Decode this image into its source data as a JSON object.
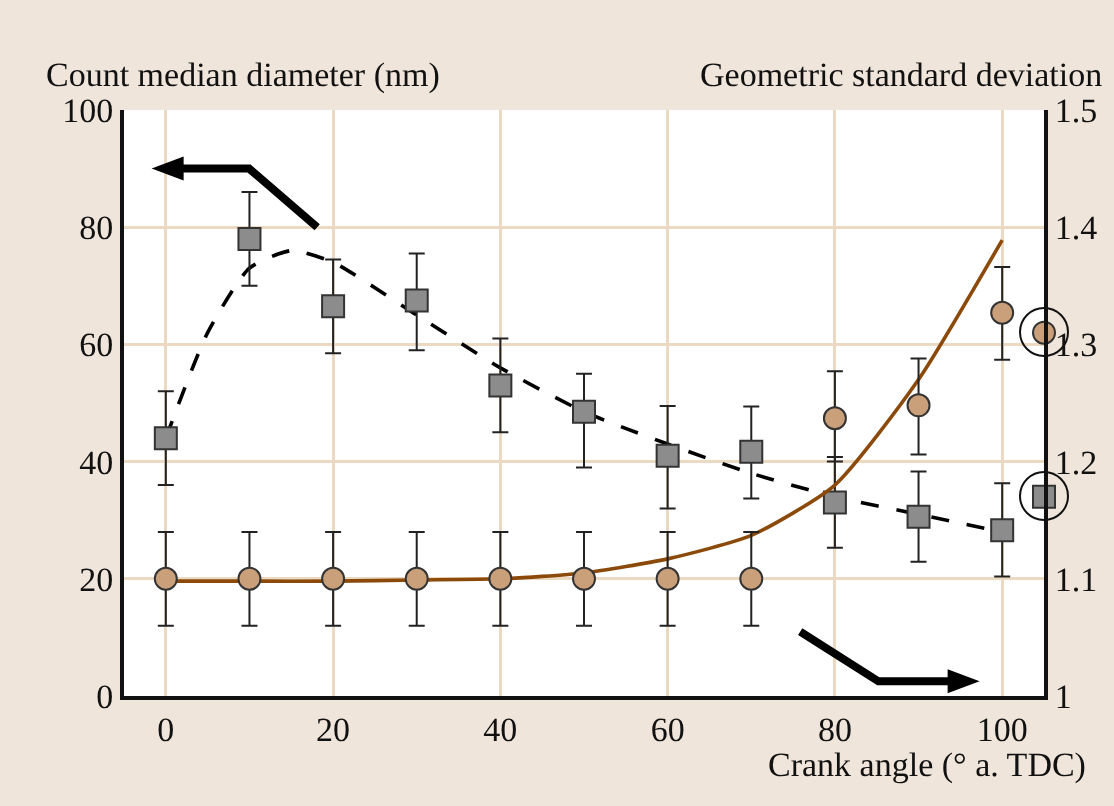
{
  "chart_data": {
    "type": "scatter",
    "xlabel": "Crank angle (° a. TDC)",
    "ylabel": "Count median diameter (nm)",
    "y2label": "Geometric standard deviation",
    "xlim": [
      -5,
      105
    ],
    "xticks": [
      0,
      20,
      40,
      60,
      80,
      100
    ],
    "ylim": [
      0,
      100
    ],
    "yticks": [
      0,
      20,
      40,
      60,
      80,
      100
    ],
    "y2lim": [
      1,
      1.5
    ],
    "y2ticks": [
      1,
      1.1,
      1.2,
      1.3,
      1.4,
      1.5
    ],
    "grid": true,
    "series": [
      {
        "type": "scatter",
        "color": "#8c8c8c",
        "marker": "square",
        "x": [
          0,
          10,
          20,
          30,
          40,
          50,
          60,
          70,
          80,
          90,
          100
        ],
        "values": [
          44,
          78,
          66.5,
          67.5,
          53,
          48.5,
          41,
          41.7,
          33,
          30.6,
          28.3
        ],
        "errors": [
          [
            36,
            52
          ],
          [
            70,
            86
          ],
          [
            58.5,
            74.5
          ],
          [
            59,
            75.5
          ],
          [
            45,
            61
          ],
          [
            39,
            55
          ],
          [
            32,
            49.5
          ],
          [
            33.7,
            49.4
          ],
          [
            25.3,
            40.8
          ],
          [
            22.9,
            38.3
          ],
          [
            20.4,
            36.3
          ]
        ]
      },
      {
        "type": "scatter",
        "axis": "y2",
        "color": "#c9a07a",
        "marker": "circle",
        "x": [
          0,
          10,
          20,
          30,
          40,
          50,
          60,
          70,
          80,
          90,
          100
        ],
        "values": [
          1.1,
          1.1,
          1.1,
          1.1,
          1.1,
          1.1,
          1.1,
          1.1,
          1.237,
          1.248,
          1.327
        ],
        "errors": [
          0.04,
          0.04,
          0.04,
          0.04,
          0.04,
          0.04,
          0.04,
          0.04,
          [
            1.2,
            1.277
          ],
          [
            1.206,
            1.288
          ],
          [
            1.287,
            1.366
          ]
        ]
      },
      {
        "axis": "y2",
        "color": "#c9a07a",
        "marker": "circle",
        "x": [
          105
        ],
        "values": [
          1.31
        ]
      },
      {
        "color": "#8c8c8c",
        "marker": "square",
        "x": [
          105
        ],
        "values": [
          34
        ]
      },
      {
        "type": "line",
        "color": "#000000",
        "line_style": "dashed",
        "x": [
          0,
          5,
          10,
          15,
          20,
          30,
          40,
          50,
          60,
          70,
          80,
          90,
          100
        ],
        "values": [
          44,
          62,
          73,
          76,
          74,
          65,
          56,
          48.5,
          43,
          38,
          34,
          31,
          28
        ]
      },
      {
        "type": "line",
        "axis": "y2",
        "color": "#8b4a0a",
        "line_style": "solid",
        "x": [
          0,
          10,
          20,
          30,
          40,
          50,
          60,
          70,
          80,
          90,
          100
        ],
        "values": [
          1.098,
          1.098,
          1.098,
          1.099,
          1.1,
          1.105,
          1.117,
          1.137,
          1.18,
          1.27,
          1.389
        ]
      }
    ]
  }
}
